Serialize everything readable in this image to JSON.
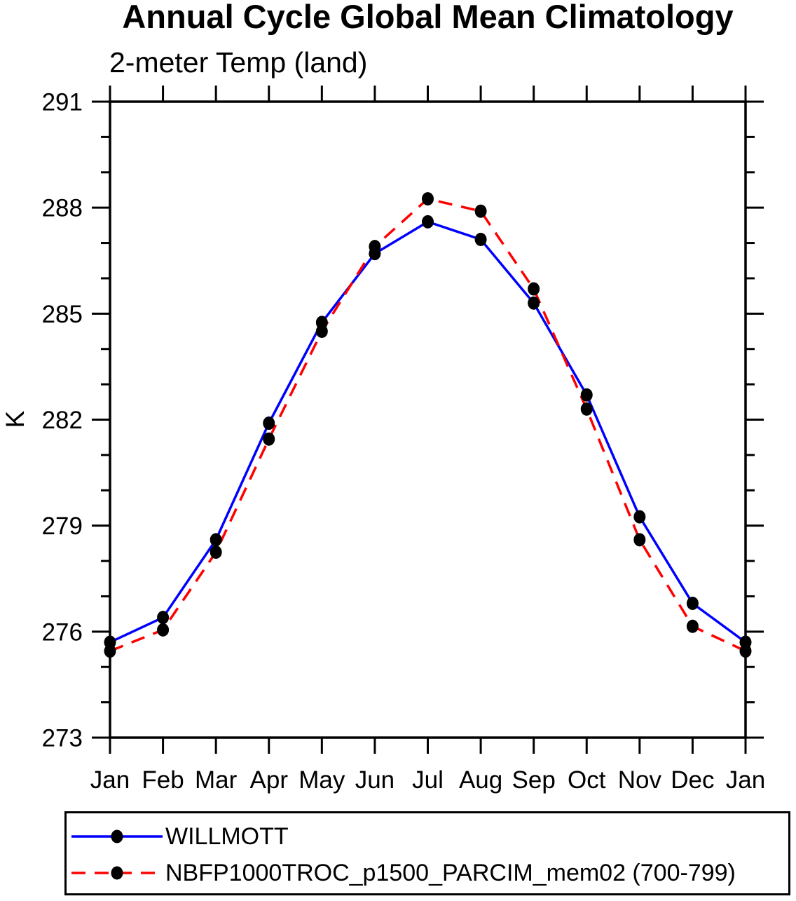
{
  "chart_data": {
    "type": "line",
    "title": "Annual Cycle Global Mean Climatology",
    "subtitle": "2-meter Temp (land)",
    "ylabel": "K",
    "xlabel": "",
    "x_categories": [
      "Jan",
      "Feb",
      "Mar",
      "Apr",
      "May",
      "Jun",
      "Jul",
      "Aug",
      "Sep",
      "Oct",
      "Nov",
      "Dec",
      "Jan"
    ],
    "ylim": [
      273,
      291
    ],
    "y_major_ticks": [
      273,
      276,
      279,
      282,
      285,
      288,
      291
    ],
    "y_minor_step": 1,
    "grid": false,
    "legend_position": "bottom",
    "axis_color": "#000000",
    "marker_shape": "filled-circle",
    "series": [
      {
        "name": "WILLMOTT",
        "color": "#0000ff",
        "style": "solid",
        "marker_color": "#000000",
        "values": [
          275.7,
          276.4,
          278.6,
          281.9,
          284.75,
          286.7,
          287.6,
          287.1,
          285.3,
          282.7,
          279.25,
          276.8,
          275.7
        ]
      },
      {
        "name": "NBFP1000TROC_p1500_PARCIM_mem02 (700-799)",
        "color": "#ff0000",
        "style": "dashed",
        "marker_color": "#000000",
        "values": [
          275.45,
          276.05,
          278.25,
          281.45,
          284.5,
          286.9,
          288.25,
          287.9,
          285.7,
          282.3,
          278.6,
          276.15,
          275.45
        ]
      }
    ]
  }
}
